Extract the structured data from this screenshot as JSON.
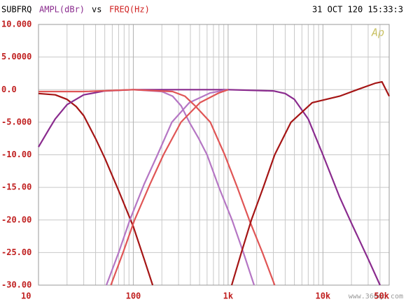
{
  "chart_data": {
    "type": "line",
    "title": "SUBFRQ",
    "ylabel": "AMPL(dBr)",
    "joiner": "vs",
    "xlabel": "FREQ(Hz)",
    "date": "31 OCT 120 15:33:3",
    "logo": "Ap",
    "watermark": "www.360qc.com",
    "xscale": "log",
    "grid": true,
    "xlim": [
      10,
      50000
    ],
    "xticks": [
      10,
      100,
      {
        "value": 1000,
        "label": "1k"
      },
      {
        "value": 10000,
        "label": "10k"
      },
      {
        "value": 50000,
        "label": "50k"
      }
    ],
    "ylim": [
      -30,
      10
    ],
    "yticks": [
      {
        "value": 10,
        "label": "10.000"
      },
      {
        "value": 5,
        "label": "5.0000"
      },
      {
        "value": 0,
        "label": "0.0"
      },
      {
        "value": -5,
        "label": "-5.000"
      },
      {
        "value": -10,
        "label": "-10.00"
      },
      {
        "value": -15,
        "label": "-15.00"
      },
      {
        "value": -20,
        "label": "-20.00"
      },
      {
        "value": -25,
        "label": "-25.00"
      },
      {
        "value": -30,
        "label": "-30.00"
      }
    ],
    "series": [
      {
        "color": "#a51515",
        "x": [
          10,
          15,
          20,
          25,
          30,
          40,
          50,
          70,
          100,
          130,
          160
        ],
        "values": [
          -0.6,
          -0.8,
          -1.5,
          -2.6,
          -4,
          -7.5,
          -10.5,
          -15.5,
          -21,
          -26,
          -30
        ]
      },
      {
        "color": "#8a2b8e",
        "x": [
          10,
          13,
          15,
          20,
          30,
          50,
          100,
          1000,
          3000,
          4000,
          5000,
          7000,
          10000,
          15000,
          20000,
          30000,
          40000
        ],
        "values": [
          -8.8,
          -6,
          -4.5,
          -2.3,
          -0.8,
          -0.2,
          0,
          0,
          -0.2,
          -0.6,
          -1.5,
          -4.5,
          -10,
          -16.5,
          -20.5,
          -26,
          -30
        ]
      },
      {
        "color": "#b576c4",
        "x": [
          52,
          70,
          92,
          130,
          180,
          255,
          390,
          650,
          1000
        ],
        "values": [
          -30,
          -25,
          -20,
          -14.5,
          -10,
          -5,
          -2,
          -0.5,
          0
        ]
      },
      {
        "color": "#b576c4",
        "x": [
          100,
          200,
          260,
          320,
          390,
          490,
          600,
          800,
          1100,
          1450,
          1880
        ],
        "values": [
          0,
          -0.3,
          -1,
          -2.5,
          -5,
          -7.5,
          -10,
          -15,
          -20,
          -25,
          -30
        ]
      },
      {
        "color": "#e05555",
        "x": [
          58,
          78,
          103,
          150,
          208,
          318,
          505,
          800,
          1000
        ],
        "values": [
          -30,
          -25,
          -20,
          -14.5,
          -10,
          -5,
          -2,
          -0.5,
          0
        ]
      },
      {
        "color": "#e05555",
        "x": [
          10,
          30,
          100,
          260,
          350,
          450,
          650,
          920,
          1250,
          1670,
          2300,
          3100
        ],
        "values": [
          -0.3,
          -0.3,
          0,
          -0.3,
          -1,
          -2.5,
          -5,
          -10,
          -15,
          -20,
          -25,
          -30
        ]
      },
      {
        "color": "#a51515",
        "x": [
          1090,
          1380,
          1760,
          2350,
          3100,
          4600,
          7700,
          15000,
          23000,
          36000,
          42000,
          50000
        ],
        "values": [
          -30,
          -25,
          -20,
          -15,
          -10,
          -5,
          -2,
          -1,
          0,
          1,
          1.2,
          -1
        ]
      }
    ]
  }
}
